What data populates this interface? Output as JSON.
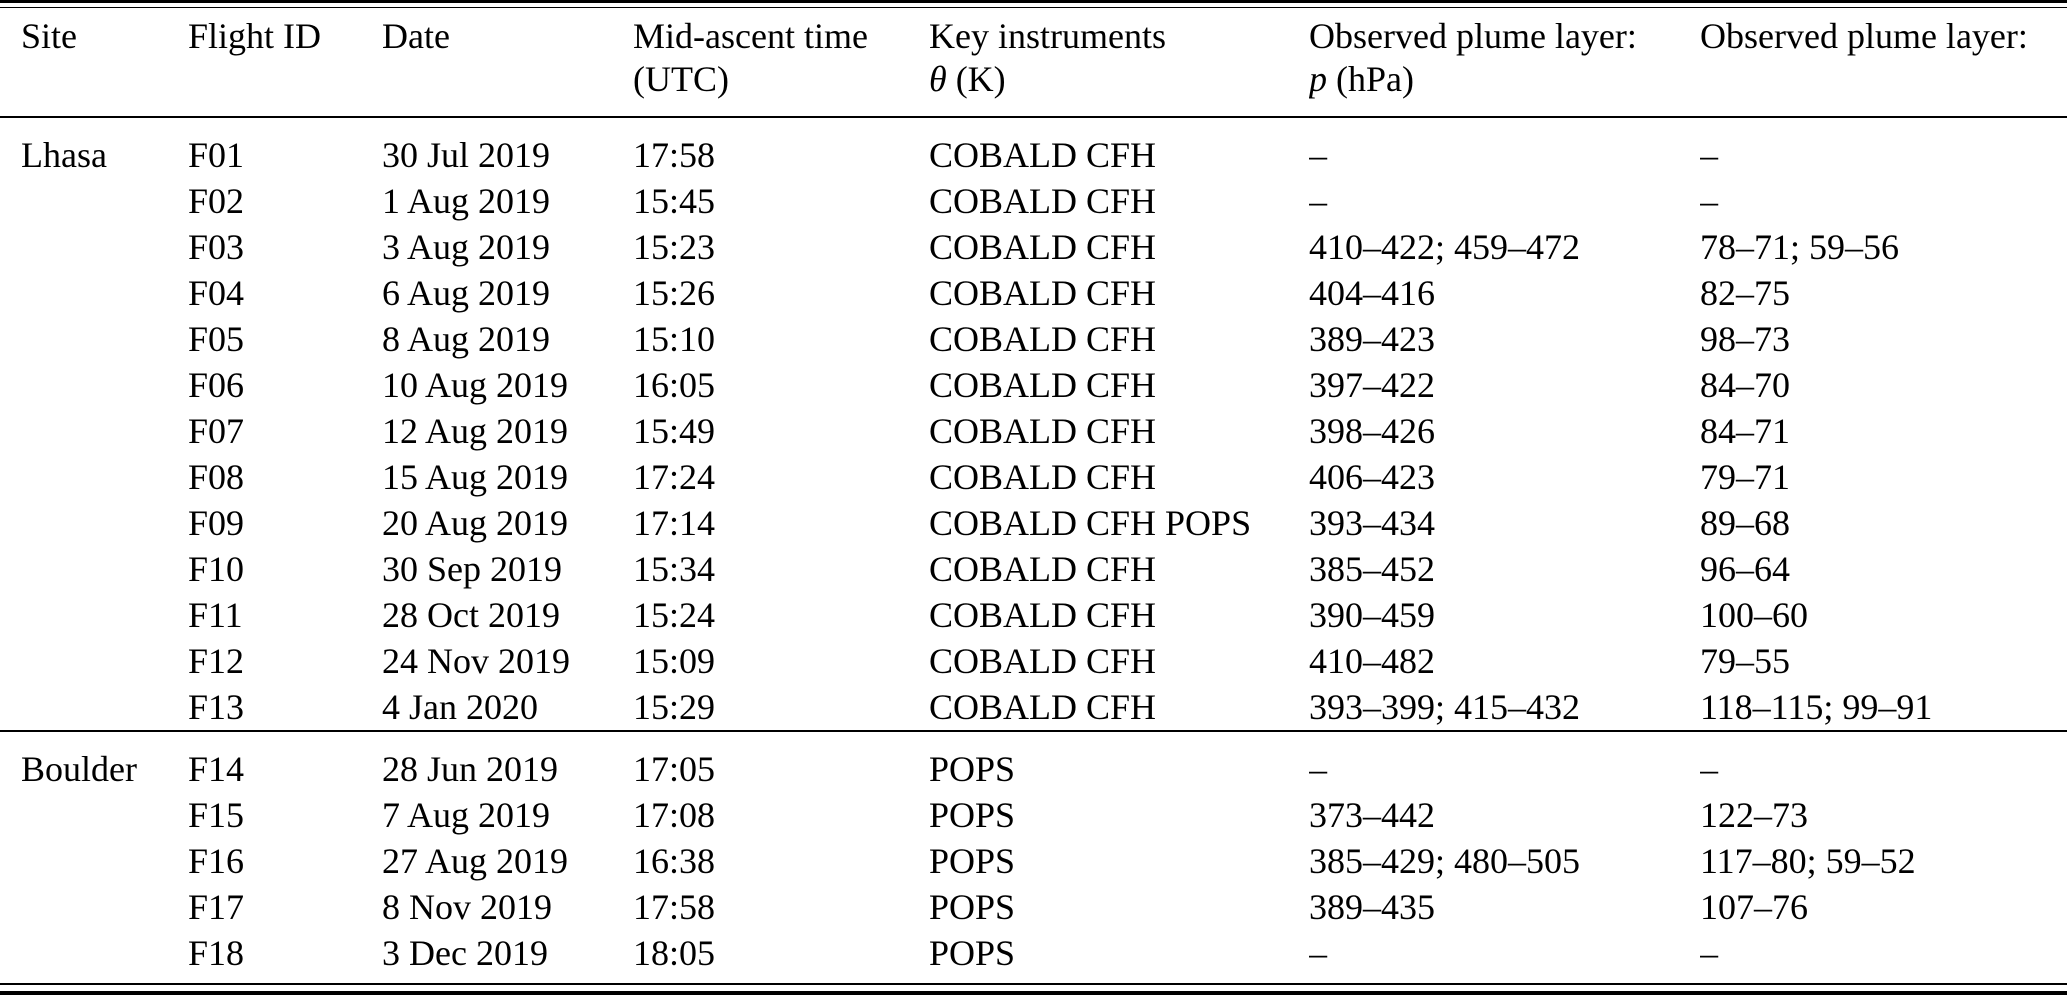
{
  "page": {
    "background": "#ffffff",
    "text_color": "#000000",
    "rule_color": "#000000"
  },
  "table": {
    "columns": [
      {
        "label": "Site",
        "sub_italic": "",
        "sub_rest": ""
      },
      {
        "label": "Flight ID",
        "sub_italic": "",
        "sub_rest": ""
      },
      {
        "label": "Date",
        "sub_italic": "",
        "sub_rest": ""
      },
      {
        "label": "Mid-ascent time",
        "sub_italic": "",
        "sub_rest": "(UTC)"
      },
      {
        "label": "Key instruments",
        "sub_italic": "θ",
        "sub_rest": " (K)"
      },
      {
        "label": "Observed plume layer:",
        "sub_italic": "p",
        "sub_rest": " (hPa)"
      },
      {
        "label": "Observed plume layer:",
        "sub_italic": "",
        "sub_rest": ""
      }
    ],
    "sections": [
      {
        "site": "Lhasa",
        "rows": [
          {
            "flight_id": "F01",
            "date": "30 Jul 2019",
            "time": "17:58",
            "instruments": "COBALD CFH",
            "theta_range": "–",
            "pressure_range": "–"
          },
          {
            "flight_id": "F02",
            "date": "1 Aug 2019",
            "time": "15:45",
            "instruments": "COBALD CFH",
            "theta_range": "–",
            "pressure_range": "–"
          },
          {
            "flight_id": "F03",
            "date": "3 Aug 2019",
            "time": "15:23",
            "instruments": "COBALD CFH",
            "theta_range": "410–422; 459–472",
            "pressure_range": "78–71; 59–56"
          },
          {
            "flight_id": "F04",
            "date": "6 Aug 2019",
            "time": "15:26",
            "instruments": "COBALD CFH",
            "theta_range": "404–416",
            "pressure_range": "82–75"
          },
          {
            "flight_id": "F05",
            "date": "8 Aug 2019",
            "time": "15:10",
            "instruments": "COBALD CFH",
            "theta_range": "389–423",
            "pressure_range": "98–73"
          },
          {
            "flight_id": "F06",
            "date": "10 Aug 2019",
            "time": "16:05",
            "instruments": "COBALD CFH",
            "theta_range": "397–422",
            "pressure_range": "84–70"
          },
          {
            "flight_id": "F07",
            "date": "12 Aug 2019",
            "time": "15:49",
            "instruments": "COBALD CFH",
            "theta_range": "398–426",
            "pressure_range": "84–71"
          },
          {
            "flight_id": "F08",
            "date": "15 Aug 2019",
            "time": "17:24",
            "instruments": "COBALD CFH",
            "theta_range": "406–423",
            "pressure_range": "79–71"
          },
          {
            "flight_id": "F09",
            "date": "20 Aug 2019",
            "time": "17:14",
            "instruments": "COBALD CFH POPS",
            "theta_range": "393–434",
            "pressure_range": "89–68"
          },
          {
            "flight_id": "F10",
            "date": "30 Sep 2019",
            "time": "15:34",
            "instruments": "COBALD CFH",
            "theta_range": "385–452",
            "pressure_range": "96–64"
          },
          {
            "flight_id": "F11",
            "date": "28 Oct 2019",
            "time": "15:24",
            "instruments": "COBALD CFH",
            "theta_range": "390–459",
            "pressure_range": "100–60"
          },
          {
            "flight_id": "F12",
            "date": "24 Nov 2019",
            "time": "15:09",
            "instruments": "COBALD CFH",
            "theta_range": "410–482",
            "pressure_range": "79–55"
          },
          {
            "flight_id": "F13",
            "date": "4 Jan 2020",
            "time": "15:29",
            "instruments": "COBALD CFH",
            "theta_range": "393–399; 415–432",
            "pressure_range": "118–115; 99–91"
          }
        ]
      },
      {
        "site": "Boulder",
        "rows": [
          {
            "flight_id": "F14",
            "date": "28 Jun 2019",
            "time": "17:05",
            "instruments": "POPS",
            "theta_range": "–",
            "pressure_range": "–"
          },
          {
            "flight_id": "F15",
            "date": "7 Aug 2019",
            "time": "17:08",
            "instruments": "POPS",
            "theta_range": "373–442",
            "pressure_range": "122–73"
          },
          {
            "flight_id": "F16",
            "date": "27 Aug 2019",
            "time": "16:38",
            "instruments": "POPS",
            "theta_range": "385–429; 480–505",
            "pressure_range": "117–80; 59–52"
          },
          {
            "flight_id": "F17",
            "date": "8 Nov 2019",
            "time": "17:58",
            "instruments": "POPS",
            "theta_range": "389–435",
            "pressure_range": "107–76"
          },
          {
            "flight_id": "F18",
            "date": "3 Dec 2019",
            "time": "18:05",
            "instruments": "POPS",
            "theta_range": "–",
            "pressure_range": "–"
          }
        ]
      }
    ]
  }
}
